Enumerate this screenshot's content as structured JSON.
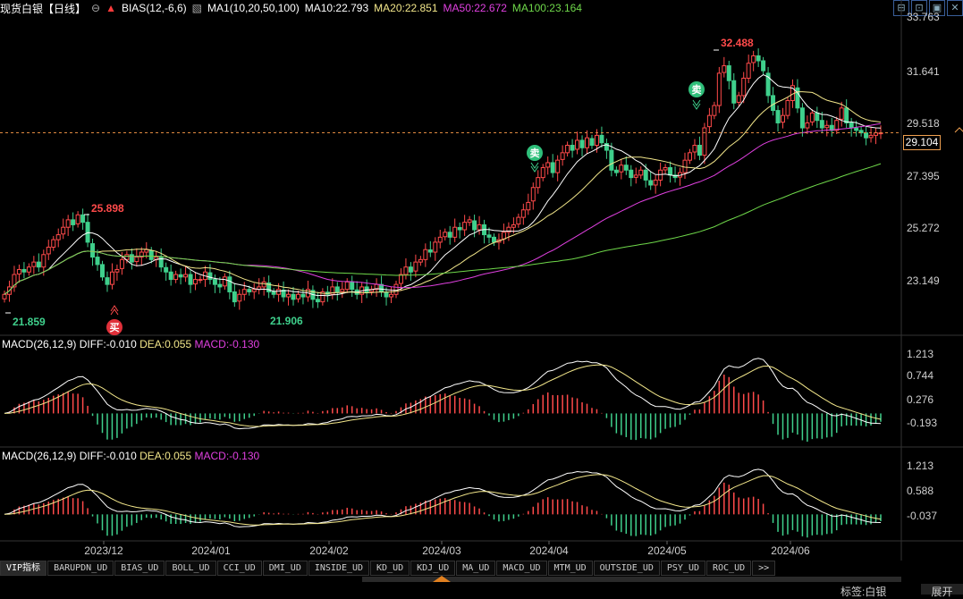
{
  "header": {
    "title": "现货白银【日线】",
    "bias": "BIAS(12,-6,6)",
    "ma_label": "MA1(10,20,50,100)",
    "ma10": "MA10:22.793",
    "ma20": "MA20:22.851",
    "ma50": "MA50:22.672",
    "ma100": "MA100:23.164"
  },
  "colors": {
    "up": "#ff4a4a",
    "down": "#3fd08c",
    "ma10": "#ffffff",
    "ma20": "#f2e68a",
    "ma50": "#e040e0",
    "ma100": "#6fd84a",
    "dea": "#f2e68a",
    "macd": "#e040e0"
  },
  "price_axis": {
    "ticks": [
      "33.763",
      "31.641",
      "29.518",
      "27.395",
      "25.272",
      "23.149"
    ],
    "current": "29.104"
  },
  "annotations": {
    "high1": "25.898",
    "low1": "21.859",
    "low2": "21.906",
    "high2": "32.488",
    "buy": "买",
    "sell": "卖"
  },
  "macd1": {
    "title": "MACD(26,12,9)",
    "diff": "DIFF:-0.010",
    "dea": "DEA:0.055",
    "macd": "MACD:-0.130",
    "ticks": [
      "1.213",
      "0.744",
      "0.276",
      "-0.193"
    ]
  },
  "macd2": {
    "title": "MACD(26,12,9)",
    "diff": "DIFF:-0.010",
    "dea": "DEA:0.055",
    "macd": "MACD:-0.130",
    "ticks": [
      "1.213",
      "0.588",
      "-0.037"
    ]
  },
  "x_axis": [
    "2023/12",
    "2024/01",
    "2024/02",
    "2024/03",
    "2024/04",
    "2024/05",
    "2024/06"
  ],
  "tabs": [
    "VIP指标",
    "BARUPDN_UD",
    "BIAS_UD",
    "BOLL_UD",
    "CCI_UD",
    "DMI_UD",
    "INSIDE_UD",
    "KD_UD",
    "KDJ_UD",
    "MA_UD",
    "MACD_UD",
    "MTM_UD",
    "OUTSIDE_UD",
    "PSY_UD",
    "ROC_UD",
    ">>"
  ],
  "footer": {
    "tag": "标签:白银",
    "expand": "展开"
  },
  "chart_data": {
    "type": "candlestick",
    "x_axis_labels": [
      "2023/12",
      "2024/01",
      "2024/02",
      "2024/03",
      "2024/04",
      "2024/05",
      "2024/06"
    ],
    "close": [
      22.6,
      22.9,
      23.4,
      23.6,
      23.5,
      23.7,
      23.9,
      23.7,
      24.2,
      24.5,
      24.8,
      25.0,
      25.3,
      25.6,
      25.4,
      25.8,
      25.5,
      24.7,
      24.1,
      23.8,
      23.3,
      23.0,
      23.5,
      23.6,
      24.0,
      24.2,
      23.9,
      24.1,
      24.3,
      24.4,
      24.0,
      24.1,
      23.7,
      23.5,
      23.2,
      23.4,
      23.3,
      23.4,
      23.0,
      23.2,
      23.2,
      23.5,
      23.2,
      23.0,
      22.9,
      23.3,
      22.7,
      22.3,
      22.6,
      22.8,
      22.7,
      22.8,
      22.9,
      23.1,
      22.7,
      22.6,
      22.8,
      22.5,
      22.6,
      22.4,
      22.6,
      22.5,
      22.8,
      22.4,
      22.3,
      22.7,
      22.6,
      22.9,
      22.7,
      22.8,
      23.1,
      22.8,
      22.6,
      22.9,
      22.7,
      22.8,
      23.0,
      22.7,
      22.5,
      22.6,
      23.0,
      23.4,
      23.7,
      23.5,
      23.9,
      24.0,
      24.4,
      24.3,
      24.7,
      24.9,
      25.1,
      24.9,
      25.3,
      25.2,
      25.5,
      25.6,
      25.2,
      25.4,
      25.0,
      24.9,
      24.7,
      24.8,
      25.1,
      25.3,
      25.4,
      25.7,
      26.0,
      26.3,
      26.9,
      27.3,
      27.7,
      27.9,
      27.5,
      28.0,
      28.3,
      28.6,
      28.4,
      28.8,
      28.5,
      28.9,
      28.6,
      29.0,
      28.7,
      28.4,
      27.6,
      27.5,
      27.8,
      27.6,
      27.3,
      27.4,
      27.6,
      27.2,
      27.0,
      27.2,
      27.6,
      27.7,
      27.4,
      27.3,
      27.5,
      28.0,
      28.3,
      28.6,
      28.2,
      29.3,
      29.8,
      30.2,
      31.5,
      31.8,
      31.2,
      30.3,
      30.6,
      31.3,
      31.9,
      32.2,
      32.0,
      31.6,
      30.6,
      30.0,
      29.5,
      29.8,
      30.4,
      31.0,
      30.1,
      29.3,
      29.5,
      29.9,
      29.6,
      29.3,
      29.4,
      29.2,
      29.6,
      30.1,
      29.5,
      29.3,
      29.2,
      29.1,
      28.9,
      29.0,
      29.1,
      29.1
    ],
    "high": 32.488,
    "low": 21.859,
    "last": 29.104,
    "ma10": 22.793,
    "ma20": 22.851,
    "ma50": 22.672,
    "ma100": 23.164
  }
}
